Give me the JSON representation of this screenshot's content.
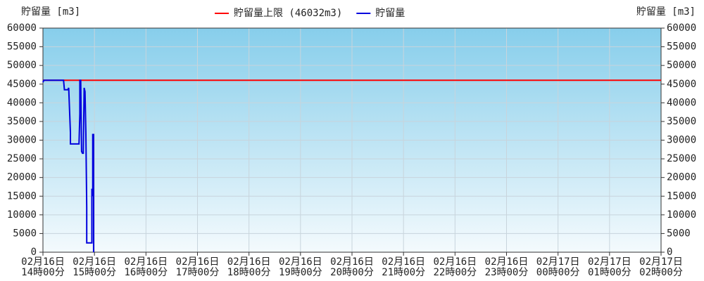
{
  "chart_data": {
    "type": "line",
    "y_label": "貯留量 [m3]",
    "y2_label": "貯留量 [m3]",
    "xlim": [
      "02-16 14:00",
      "02-17 02:00"
    ],
    "xticks": [
      {
        "value": "02-16 14:00",
        "label": "02月16日\n14時00分"
      },
      {
        "value": "02-16 15:00",
        "label": "02月16日\n15時00分"
      },
      {
        "value": "02-16 16:00",
        "label": "02月16日\n16時00分"
      },
      {
        "value": "02-16 17:00",
        "label": "02月16日\n17時00分"
      },
      {
        "value": "02-16 18:00",
        "label": "02月16日\n18時00分"
      },
      {
        "value": "02-16 19:00",
        "label": "02月16日\n19時00分"
      },
      {
        "value": "02-16 20:00",
        "label": "02月16日\n20時00分"
      },
      {
        "value": "02-16 21:00",
        "label": "02月16日\n21時00分"
      },
      {
        "value": "02-16 22:00",
        "label": "02月16日\n22時00分"
      },
      {
        "value": "02-16 23:00",
        "label": "02月16日\n23時00分"
      },
      {
        "value": "02-17 00:00",
        "label": "02月17日\n00時00分"
      },
      {
        "value": "02-17 01:00",
        "label": "02月17日\n01時00分"
      },
      {
        "value": "02-17 02:00",
        "label": "02月17日\n02時00分"
      }
    ],
    "ylim": [
      0,
      60000
    ],
    "yticks": [
      0,
      5000,
      10000,
      15000,
      20000,
      25000,
      30000,
      35000,
      40000,
      45000,
      50000,
      55000,
      60000
    ],
    "y2lim": [
      0,
      60000
    ],
    "y2ticks": [
      0,
      5000,
      10000,
      15000,
      20000,
      25000,
      30000,
      35000,
      40000,
      45000,
      50000,
      55000,
      60000
    ],
    "grid": true,
    "series": [
      {
        "name": "貯留量上限 (46032m3)",
        "color": "#ff0000",
        "x": [
          "02-16 14:00",
          "02-17 02:00"
        ],
        "values": [
          46032,
          46032
        ]
      },
      {
        "name": "貯留量",
        "color": "#0000dd",
        "x": [
          "02-16 14:00",
          "02-16 14:01",
          "02-16 14:24",
          "02-16 14:25",
          "02-16 14:29",
          "02-16 14:30",
          "02-16 14:31",
          "02-16 14:32",
          "02-16 14:32",
          "02-16 14:42",
          "02-16 14:43",
          "02-16 14:43",
          "02-16 14:44",
          "02-16 14:45",
          "02-16 14:46",
          "02-16 14:47",
          "02-16 14:48",
          "02-16 14:49",
          "02-16 14:50",
          "02-16 14:51",
          "02-16 14:51",
          "02-16 14:57",
          "02-16 14:57",
          "02-16 14:58",
          "02-16 14:58",
          "02-16 14:59",
          "02-16 14:59"
        ],
        "values": [
          45500,
          46032,
          46032,
          43500,
          43500,
          44000,
          38000,
          32000,
          29000,
          29000,
          37000,
          46000,
          46000,
          27000,
          26500,
          26500,
          44000,
          43000,
          32000,
          12000,
          2500,
          2500,
          17000,
          15000,
          31500,
          31500,
          0
        ]
      }
    ]
  }
}
